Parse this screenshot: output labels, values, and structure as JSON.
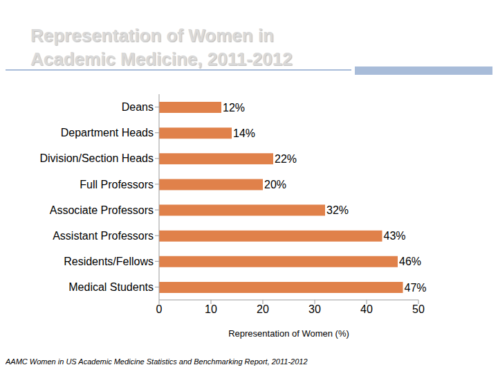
{
  "chart_data": {
    "type": "bar",
    "title": "Representation of Women in Academic Medicine, 2011-2012",
    "orientation": "horizontal",
    "categories": [
      "Deans",
      "Department Heads",
      "Division/Section Heads",
      "Full Professors",
      "Associate Professors",
      "Assistant Professors",
      "Residents/Fellows",
      "Medical Students"
    ],
    "values": [
      12,
      14,
      22,
      20,
      32,
      43,
      46,
      47
    ],
    "value_labels": [
      "12%",
      "14%",
      "22%",
      "20%",
      "32%",
      "43%",
      "46%",
      "47%"
    ],
    "data_labels": true,
    "color": "#e0814a",
    "xlim": [
      0,
      50
    ],
    "xticks": [
      0,
      10,
      20,
      30,
      40,
      50
    ],
    "xlabel": "Representation of Women (%)",
    "grid": false,
    "source": "AAMC Women in US Academic Medicine Statistics and Benchmarking Report, 2011-2012"
  }
}
